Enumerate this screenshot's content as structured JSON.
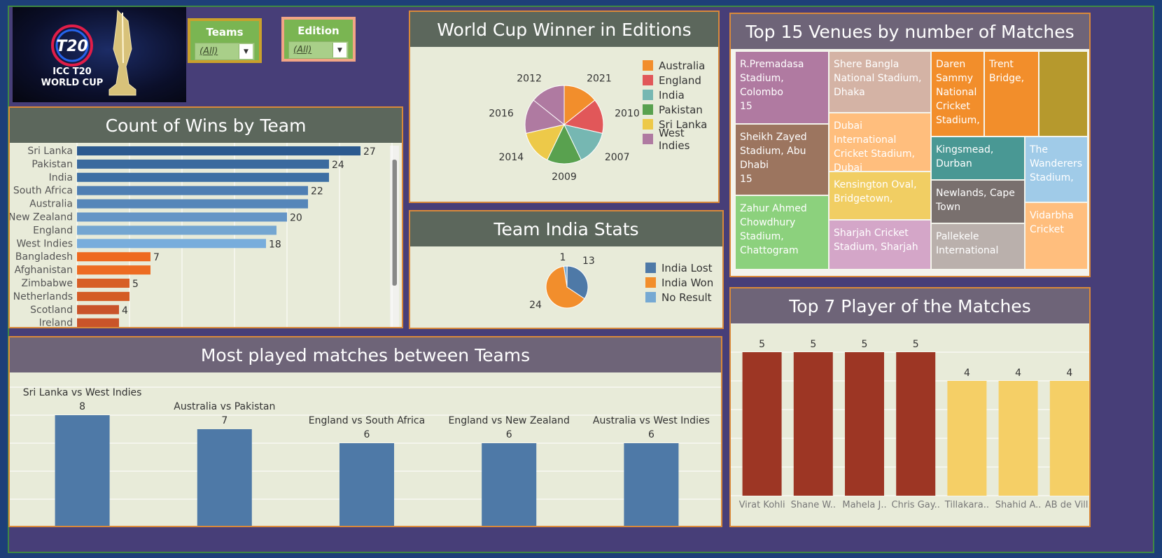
{
  "filters": {
    "teams": {
      "label": "Teams",
      "value": "(All)"
    },
    "edition": {
      "label": "Edition",
      "value": "(All)"
    }
  },
  "logo": {
    "line1": "T20",
    "line2": "ICC T20",
    "line3": "WORLD CUP"
  },
  "colors": {
    "background": "#473e78",
    "panel": "#e8ebd9",
    "panel_border": "#d9893a",
    "title_green": "#5c675c",
    "title_purple": "#6e6478"
  },
  "chart_data": [
    {
      "id": "wins",
      "type": "bar",
      "orientation": "horizontal",
      "title": "Count of Wins by Team",
      "categories": [
        "Sri Lanka",
        "Pakistan",
        "India",
        "South Africa",
        "Australia",
        "New Zealand",
        "England",
        "West Indies",
        "Bangladesh",
        "Afghanistan",
        "Zimbabwe",
        "Netherlands",
        "Scotland",
        "Ireland"
      ],
      "values": [
        27,
        24,
        24,
        22,
        22,
        20,
        19,
        18,
        7,
        7,
        5,
        5,
        4,
        4
      ],
      "labels": [
        "27",
        "24",
        "",
        "22",
        "",
        "20",
        "",
        "18",
        "7",
        "",
        "5",
        "",
        "4",
        ""
      ],
      "colors": [
        "#2c5a8f",
        "#3a6a9e",
        "#3d6fa4",
        "#4f7fb3",
        "#5686b9",
        "#6595c6",
        "#74a6d1",
        "#78addc",
        "#ee6a1f",
        "#ed6c22",
        "#d75f26",
        "#d45c25",
        "#c9542a",
        "#c9542a"
      ],
      "xlim": [
        0,
        30
      ],
      "grid": true
    },
    {
      "id": "winners",
      "type": "pie",
      "title": "World Cup Winner in Editions",
      "slices": [
        {
          "label": "2021",
          "team": "Australia",
          "value": 1,
          "color": "#f28e2c"
        },
        {
          "label": "2010",
          "team": "England",
          "value": 1,
          "color": "#e15759"
        },
        {
          "label": "2007",
          "team": "India",
          "value": 1,
          "color": "#76b7b2"
        },
        {
          "label": "2009",
          "team": "Pakistan",
          "value": 1,
          "color": "#59a14f"
        },
        {
          "label": "2014",
          "team": "Sri Lanka",
          "value": 1,
          "color": "#edc949"
        },
        {
          "label": "2016",
          "team": "West Indies",
          "value": 1,
          "color": "#af7aa1"
        },
        {
          "label": "2012",
          "team": "West Indies",
          "value": 1,
          "color": "#af7aa1"
        }
      ],
      "legend": [
        {
          "name": "Australia",
          "color": "#f28e2c"
        },
        {
          "name": "England",
          "color": "#e15759"
        },
        {
          "name": "India",
          "color": "#76b7b2"
        },
        {
          "name": "Pakistan",
          "color": "#59a14f"
        },
        {
          "name": "Sri Lanka",
          "color": "#edc949"
        },
        {
          "name": "West Indies",
          "color": "#af7aa1"
        }
      ],
      "legend_position": "right"
    },
    {
      "id": "india",
      "type": "pie",
      "title": "Team India Stats",
      "slices": [
        {
          "name": "India Lost",
          "value": 13,
          "color": "#4e79a7"
        },
        {
          "name": "India Won",
          "value": 24,
          "color": "#f28e2c"
        },
        {
          "name": "No Result",
          "value": 1,
          "color": "#76a9d3"
        }
      ],
      "legend_position": "right"
    },
    {
      "id": "venues",
      "type": "treemap",
      "title": "Top 15 Venues by number of Matches",
      "cells": [
        {
          "label": "R.Premadasa Stadium, Colombo",
          "value": "15",
          "color": "#b07aa1"
        },
        {
          "label": "Sheikh Zayed Stadium, Abu Dhabi",
          "value": "15",
          "color": "#9c755f"
        },
        {
          "label": "Zahur Ahmed Chowdhury Stadium, Chattogram",
          "value": "",
          "color": "#8cd17d"
        },
        {
          "label": "Shere Bangla National Stadium, Dhaka",
          "value": "",
          "color": "#d4b3a5"
        },
        {
          "label": "Dubai International Cricket Stadium, Dubai",
          "value": "",
          "color": "#ffbe7d"
        },
        {
          "label": "Kensington Oval, Bridgetown,",
          "value": "",
          "color": "#f1ce63"
        },
        {
          "label": "Sharjah Cricket Stadium, Sharjah",
          "value": "",
          "color": "#d4a6c8"
        },
        {
          "label": "Daren Sammy National Cricket Stadium,",
          "value": "",
          "color": "#f28e2b"
        },
        {
          "label": "Trent Bridge,",
          "value": "",
          "color": "#f28e2b"
        },
        {
          "label": "",
          "value": "",
          "color": "#b6992d"
        },
        {
          "label": "Kingsmead, Durban",
          "value": "",
          "color": "#499894"
        },
        {
          "label": "The Wanderers Stadium,",
          "value": "",
          "color": "#a0cbe8"
        },
        {
          "label": "Newlands, Cape Town",
          "value": "",
          "color": "#79706e"
        },
        {
          "label": "Pallekele International",
          "value": "",
          "color": "#bab0ac"
        },
        {
          "label": "Vidarbha Cricket",
          "value": "",
          "color": "#ffbe7d"
        }
      ]
    },
    {
      "id": "matchups",
      "type": "bar",
      "title": "Most played matches between Teams",
      "categories": [
        "Sri Lanka vs West Indies",
        "Australia vs Pakistan",
        "England vs South Africa",
        "England vs New Zealand",
        "Australia vs West Indies"
      ],
      "values": [
        8,
        7,
        6,
        6,
        6
      ],
      "color": "#4e79a7",
      "ylim": [
        0,
        10
      ],
      "grid": true
    },
    {
      "id": "pom",
      "type": "bar",
      "title": "Top 7 Player of the Matches",
      "categories": [
        "Virat Kohli",
        "Shane W..",
        "Mahela J..",
        "Chris Gay..",
        "Tillakara..",
        "Shahid A..",
        "AB de Vill.."
      ],
      "values": [
        5,
        5,
        5,
        5,
        4,
        4,
        4
      ],
      "colors": [
        "#9d3624",
        "#9d3624",
        "#9d3624",
        "#9d3624",
        "#f5cf66",
        "#f5cf66",
        "#f5cf66"
      ],
      "ylim": [
        0,
        6
      ],
      "grid": true
    }
  ]
}
